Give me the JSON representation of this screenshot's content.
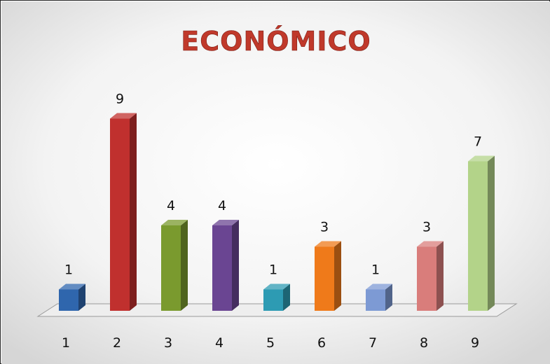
{
  "chart_data": {
    "type": "bar",
    "title": "ECONÓMICO",
    "xlabel": "",
    "ylabel": "",
    "categories": [
      "1",
      "2",
      "3",
      "4",
      "5",
      "6",
      "7",
      "8",
      "9"
    ],
    "values": [
      1,
      9,
      4,
      4,
      1,
      3,
      1,
      3,
      7
    ],
    "data_labels": [
      "1",
      "9",
      "4",
      "4",
      "1",
      "3",
      "1",
      "3",
      "7"
    ],
    "ylim": [
      0,
      9
    ],
    "grid": false,
    "legend": "none",
    "style": "3d-columns",
    "colors": [
      "#2f66ad",
      "#c0302e",
      "#7a9a2e",
      "#6a4592",
      "#2d9bb3",
      "#ef7a1a",
      "#7d9ad4",
      "#d97d7b",
      "#b3d389"
    ]
  }
}
